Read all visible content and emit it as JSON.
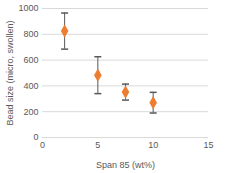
{
  "chart_data": {
    "type": "scatter",
    "x_label": "Span 85 (wt%)",
    "y_label": "Bead size (micro, swollen)",
    "x": [
      2,
      5,
      7.5,
      10
    ],
    "values": [
      825,
      483,
      352,
      270
    ],
    "errors": [
      140,
      143,
      62,
      80
    ],
    "color": "#ed7d31",
    "marker": "diamond",
    "xlim": [
      0,
      15
    ],
    "xticks": [
      0,
      5,
      10,
      15
    ],
    "ylim": [
      0,
      1000
    ],
    "yticks": [
      0,
      200,
      400,
      600,
      800,
      1000
    ],
    "grid": true
  }
}
